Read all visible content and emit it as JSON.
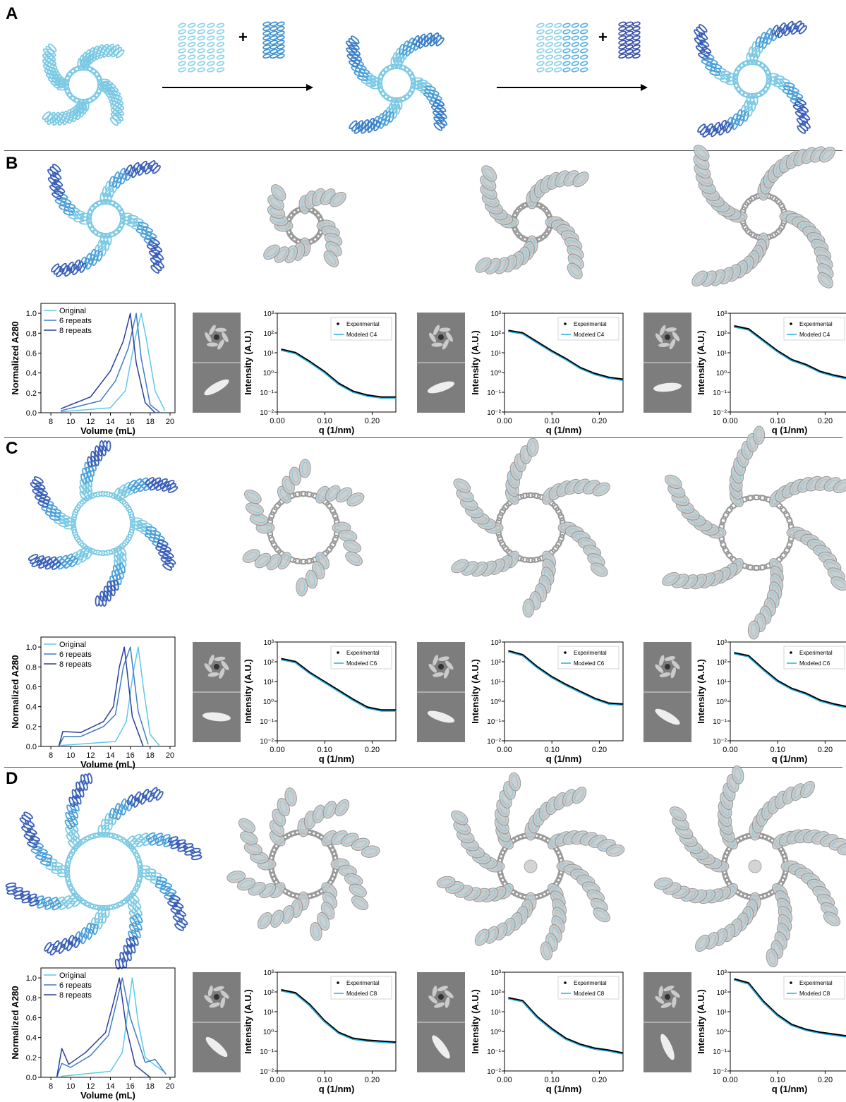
{
  "figure": {
    "panels": [
      "A",
      "B",
      "C",
      "D"
    ],
    "panelA": {
      "plus1": "+",
      "plus2": "+"
    }
  },
  "colors": {
    "original": "#5ec8ea",
    "six": "#3f7dc4",
    "eight": "#2b3d99",
    "model": "#22aee6",
    "exp": "#000000"
  },
  "sec_labels": {
    "xlabel": "Volume (mL)",
    "ylabel": "Normalized A280",
    "legend": [
      "Original",
      "6 repeats",
      "8 repeats"
    ],
    "xticks": [
      "8",
      "10",
      "12",
      "14",
      "16",
      "18",
      "20"
    ],
    "yticks": [
      "0.0",
      "0.2",
      "0.4",
      "0.6",
      "0.8",
      "1.0"
    ]
  },
  "saxs_labels": {
    "xlabel": "q (1/nm)",
    "ylabel": "Intensity (A.U.)",
    "xticks": [
      "0.00",
      "0.10",
      "0.20"
    ],
    "legend_exp": "Experimental"
  },
  "chart_data": [
    {
      "id": "B-sec",
      "type": "line",
      "xlabel": "Volume (mL)",
      "ylabel": "Normalized A280",
      "xlim": [
        7,
        20.5
      ],
      "ylim": [
        0,
        1.1
      ],
      "series": [
        {
          "name": "Original",
          "x": [
            9,
            14,
            15.5,
            16.5,
            17.1,
            17.6,
            18.5,
            19.5
          ],
          "values": [
            0.01,
            0.05,
            0.22,
            0.75,
            1.0,
            0.75,
            0.22,
            0.02
          ]
        },
        {
          "name": "6 repeats",
          "x": [
            9,
            13,
            14.5,
            15.8,
            16.6,
            17.1,
            18,
            19
          ],
          "values": [
            0.02,
            0.12,
            0.32,
            0.65,
            1.0,
            0.55,
            0.08,
            0.0
          ]
        },
        {
          "name": "8 repeats",
          "x": [
            9,
            12,
            14,
            15.3,
            16.0,
            16.6,
            17.5,
            18.5
          ],
          "values": [
            0.04,
            0.16,
            0.42,
            0.72,
            1.0,
            0.5,
            0.1,
            0.0
          ]
        }
      ]
    },
    {
      "id": "B-saxs1",
      "type": "line",
      "label": "Modeled C4",
      "xlim": [
        0,
        0.25
      ],
      "ylim": [
        -2,
        3
      ],
      "log10_y": [
        1.12,
        0.95,
        0.5,
        0.0,
        -0.6,
        -1.0,
        -1.2,
        -1.3,
        -1.3
      ]
    },
    {
      "id": "B-saxs2",
      "type": "line",
      "label": "Modeled C4",
      "xlim": [
        0,
        0.25
      ],
      "ylim": [
        -2,
        3
      ],
      "log10_y": [
        2.07,
        1.95,
        1.5,
        1.05,
        0.65,
        0.2,
        -0.1,
        -0.3,
        -0.4
      ]
    },
    {
      "id": "B-saxs3",
      "type": "line",
      "label": "Modeled C4",
      "xlim": [
        0,
        0.25
      ],
      "ylim": [
        -2,
        3
      ],
      "log10_y": [
        2.3,
        2.15,
        1.6,
        1.05,
        0.6,
        0.35,
        0.0,
        -0.2,
        -0.35
      ]
    },
    {
      "id": "C-sec",
      "type": "line",
      "xlabel": "Volume (mL)",
      "ylabel": "Normalized A280",
      "xlim": [
        7,
        20.5
      ],
      "ylim": [
        0,
        1.1
      ],
      "series": [
        {
          "name": "Original",
          "x": [
            9,
            14.5,
            15.6,
            16.3,
            16.8,
            17.3,
            18,
            19
          ],
          "values": [
            0.01,
            0.05,
            0.25,
            0.75,
            1.0,
            0.6,
            0.12,
            0.0
          ]
        },
        {
          "name": "6 repeats",
          "x": [
            8.8,
            9.3,
            11,
            13.3,
            14.5,
            15.3,
            16.0,
            16.8,
            17.8
          ],
          "values": [
            0.0,
            0.1,
            0.1,
            0.2,
            0.32,
            0.8,
            1.0,
            0.35,
            0.02
          ]
        },
        {
          "name": "8 repeats",
          "x": [
            8.8,
            9.2,
            11,
            13.3,
            14.3,
            14.9,
            15.4,
            16.2,
            17.3
          ],
          "values": [
            0.0,
            0.15,
            0.14,
            0.25,
            0.4,
            0.8,
            1.0,
            0.3,
            0.0
          ]
        }
      ]
    },
    {
      "id": "C-saxs1",
      "type": "line",
      "label": "Modeled C6",
      "xlim": [
        0,
        0.25
      ],
      "ylim": [
        -2,
        3
      ],
      "log10_y": [
        2.1,
        1.95,
        1.4,
        0.95,
        0.5,
        0.05,
        -0.35,
        -0.5,
        -0.5
      ]
    },
    {
      "id": "C-saxs2",
      "type": "line",
      "label": "Modeled C6",
      "xlim": [
        0,
        0.25
      ],
      "ylim": [
        -2,
        3
      ],
      "log10_y": [
        2.5,
        2.3,
        1.7,
        1.2,
        0.8,
        0.45,
        0.1,
        -0.15,
        -0.2
      ]
    },
    {
      "id": "C-saxs3",
      "type": "line",
      "label": "Modeled C6",
      "xlim": [
        0,
        0.25
      ],
      "ylim": [
        -2,
        3
      ],
      "log10_y": [
        2.4,
        2.25,
        1.6,
        1.0,
        0.6,
        0.35,
        0.0,
        -0.2,
        -0.35
      ]
    },
    {
      "id": "D-sec",
      "type": "line",
      "xlabel": "Volume (mL)",
      "ylabel": "Normalized A280",
      "xlim": [
        7,
        20.5
      ],
      "ylim": [
        0,
        1.1
      ],
      "series": [
        {
          "name": "Original",
          "x": [
            9,
            14,
            15.2,
            15.8,
            16.2,
            16.8,
            17.5,
            18.5,
            19.5
          ],
          "values": [
            0.01,
            0.06,
            0.25,
            0.7,
            1.0,
            0.55,
            0.2,
            0.12,
            0.05
          ]
        },
        {
          "name": "6 repeats",
          "x": [
            8.6,
            9.1,
            10,
            12,
            13.8,
            14.6,
            15.2,
            16,
            17.5,
            18.5,
            19.6
          ],
          "values": [
            0.0,
            0.14,
            0.1,
            0.22,
            0.42,
            0.75,
            1.0,
            0.6,
            0.15,
            0.18,
            0.03
          ]
        },
        {
          "name": "8 repeats",
          "x": [
            8.6,
            9.1,
            9.8,
            11.5,
            13.5,
            14.3,
            14.9,
            15.6,
            16.5,
            18
          ],
          "values": [
            0.0,
            0.29,
            0.13,
            0.25,
            0.45,
            0.75,
            1.0,
            0.5,
            0.12,
            0.0
          ]
        }
      ]
    },
    {
      "id": "D-saxs1",
      "type": "line",
      "label": "Modeled C8",
      "xlim": [
        0,
        0.25
      ],
      "ylim": [
        -2,
        3
      ],
      "log10_y": [
        2.05,
        1.9,
        1.3,
        0.5,
        -0.1,
        -0.4,
        -0.5,
        -0.55,
        -0.6
      ]
    },
    {
      "id": "D-saxs2",
      "type": "line",
      "label": "Modeled C8",
      "xlim": [
        0,
        0.25
      ],
      "ylim": [
        -2,
        3
      ],
      "log10_y": [
        1.65,
        1.5,
        0.7,
        0.1,
        -0.4,
        -0.7,
        -0.9,
        -1.0,
        -1.15
      ]
    },
    {
      "id": "D-saxs3",
      "type": "line",
      "label": "Modeled C8",
      "xlim": [
        0,
        0.25
      ],
      "ylim": [
        -2,
        3
      ],
      "log10_y": [
        2.6,
        2.4,
        1.5,
        0.8,
        0.3,
        0.05,
        -0.1,
        -0.2,
        -0.3
      ]
    }
  ],
  "saxs_ylabels": [
    "10²",
    "10⁻¹",
    "10⁰",
    "10¹",
    "10²",
    "10³"
  ]
}
